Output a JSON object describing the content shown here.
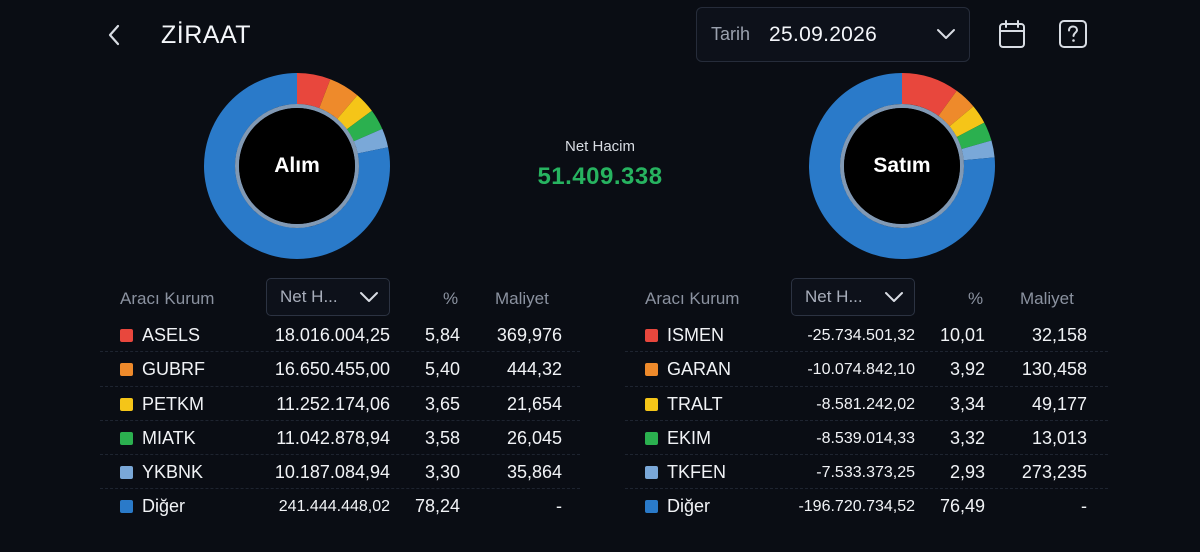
{
  "header": {
    "title": "ZİRAAT",
    "date_label": "Tarih",
    "date_value": "25.09.2026"
  },
  "net": {
    "label": "Net Hacim",
    "value": "51.409.338",
    "color": "#27b360"
  },
  "colors": {
    "red": "#e8473d",
    "orange": "#ee8a2b",
    "yellow": "#f5c518",
    "green": "#2bb04f",
    "lightblue": "#7aa8d8",
    "blue": "#2a7ac9"
  },
  "buy": {
    "label": "Alım",
    "headers": {
      "broker": "Aracı Kurum",
      "sort": "Net H...",
      "pct": "%",
      "cost": "Maliyet"
    },
    "rows": [
      {
        "name": "ASELS",
        "net": "18.016.004,25",
        "pct": "5,84",
        "cost": "369,976",
        "color": "#e8473d"
      },
      {
        "name": "GUBRF",
        "net": "16.650.455,00",
        "pct": "5,40",
        "cost": "444,32",
        "color": "#ee8a2b"
      },
      {
        "name": "PETKM",
        "net": "11.252.174,06",
        "pct": "3,65",
        "cost": "21,654",
        "color": "#f5c518"
      },
      {
        "name": "MIATK",
        "net": "11.042.878,94",
        "pct": "3,58",
        "cost": "26,045",
        "color": "#2bb04f"
      },
      {
        "name": "YKBNK",
        "net": "10.187.084,94",
        "pct": "3,30",
        "cost": "35,864",
        "color": "#7aa8d8"
      },
      {
        "name": "Diğer",
        "net": "241.444.448,02",
        "pct": "78,24",
        "cost": "-",
        "color": "#2a7ac9"
      }
    ],
    "chart_data": {
      "type": "pie",
      "categories": [
        "ASELS",
        "GUBRF",
        "PETKM",
        "MIATK",
        "YKBNK",
        "Diğer"
      ],
      "values": [
        5.84,
        5.4,
        3.65,
        3.58,
        3.3,
        78.24
      ]
    }
  },
  "sell": {
    "label": "Satım",
    "headers": {
      "broker": "Aracı Kurum",
      "sort": "Net H...",
      "pct": "%",
      "cost": "Maliyet"
    },
    "rows": [
      {
        "name": "ISMEN",
        "net": "-25.734.501,32",
        "pct": "10,01",
        "cost": "32,158",
        "color": "#e8473d"
      },
      {
        "name": "GARAN",
        "net": "-10.074.842,10",
        "pct": "3,92",
        "cost": "130,458",
        "color": "#ee8a2b"
      },
      {
        "name": "TRALT",
        "net": "-8.581.242,02",
        "pct": "3,34",
        "cost": "49,177",
        "color": "#f5c518"
      },
      {
        "name": "EKIM",
        "net": "-8.539.014,33",
        "pct": "3,32",
        "cost": "13,013",
        "color": "#2bb04f"
      },
      {
        "name": "TKFEN",
        "net": "-7.533.373,25",
        "pct": "2,93",
        "cost": "273,235",
        "color": "#7aa8d8"
      },
      {
        "name": "Diğer",
        "net": "-196.720.734,52",
        "pct": "76,49",
        "cost": "-",
        "color": "#2a7ac9"
      }
    ],
    "chart_data": {
      "type": "pie",
      "categories": [
        "ISMEN",
        "GARAN",
        "TRALT",
        "EKIM",
        "TKFEN",
        "Diğer"
      ],
      "values": [
        10.01,
        3.92,
        3.34,
        3.32,
        2.93,
        76.49
      ]
    }
  }
}
